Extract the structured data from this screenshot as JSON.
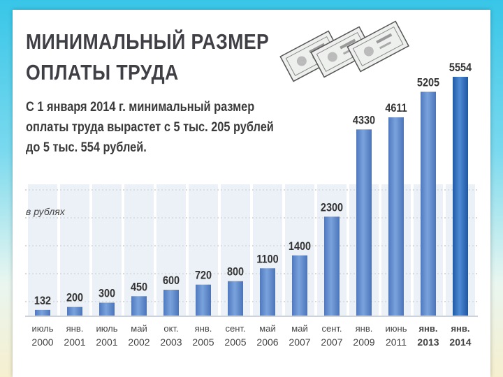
{
  "title_lines": [
    "МИНИМАЛЬНЫЙ РАЗМЕР",
    "ОПЛАТЫ ТРУДА"
  ],
  "subtitle_lines": [
    "С 1 января 2014 г. минимальный размер",
    "оплаты труда вырастет с 5 тыс. 205 рублей",
    "до 5 тыс. 554 рублей."
  ],
  "unit_note": "в рублях",
  "colors": {
    "bar": "#5a86c9",
    "bar_highlight": "#2d6bb8",
    "column_bg": "#dde5f1",
    "text": "#3a3a3a",
    "gridline": "#b0b0b0"
  },
  "decoration": "banknotes-icon",
  "chart_data": {
    "type": "bar",
    "title": "МИНИМАЛЬНЫЙ РАЗМЕР ОПЛАТЫ ТРУДА",
    "ylabel": "в рублях",
    "xlabel": "",
    "ylim": [
      0,
      5554
    ],
    "grid": true,
    "categories": [
      {
        "month": "июль",
        "year": "2000"
      },
      {
        "month": "янв.",
        "year": "2001"
      },
      {
        "month": "июль",
        "year": "2001"
      },
      {
        "month": "май",
        "year": "2002"
      },
      {
        "month": "окт.",
        "year": "2003"
      },
      {
        "month": "янв.",
        "year": "2005"
      },
      {
        "month": "сент.",
        "year": "2005"
      },
      {
        "month": "май",
        "year": "2006"
      },
      {
        "month": "май",
        "year": "2007"
      },
      {
        "month": "сент.",
        "year": "2007"
      },
      {
        "month": "янв.",
        "year": "2009"
      },
      {
        "month": "июнь",
        "year": "2011"
      },
      {
        "month": "янв.",
        "year": "2013"
      },
      {
        "month": "янв.",
        "year": "2014"
      }
    ],
    "values": [
      132,
      200,
      300,
      450,
      600,
      720,
      800,
      1100,
      1400,
      2300,
      4330,
      4611,
      5205,
      5554
    ],
    "bold_categories": [
      12,
      13
    ],
    "highlight_index": 13
  }
}
